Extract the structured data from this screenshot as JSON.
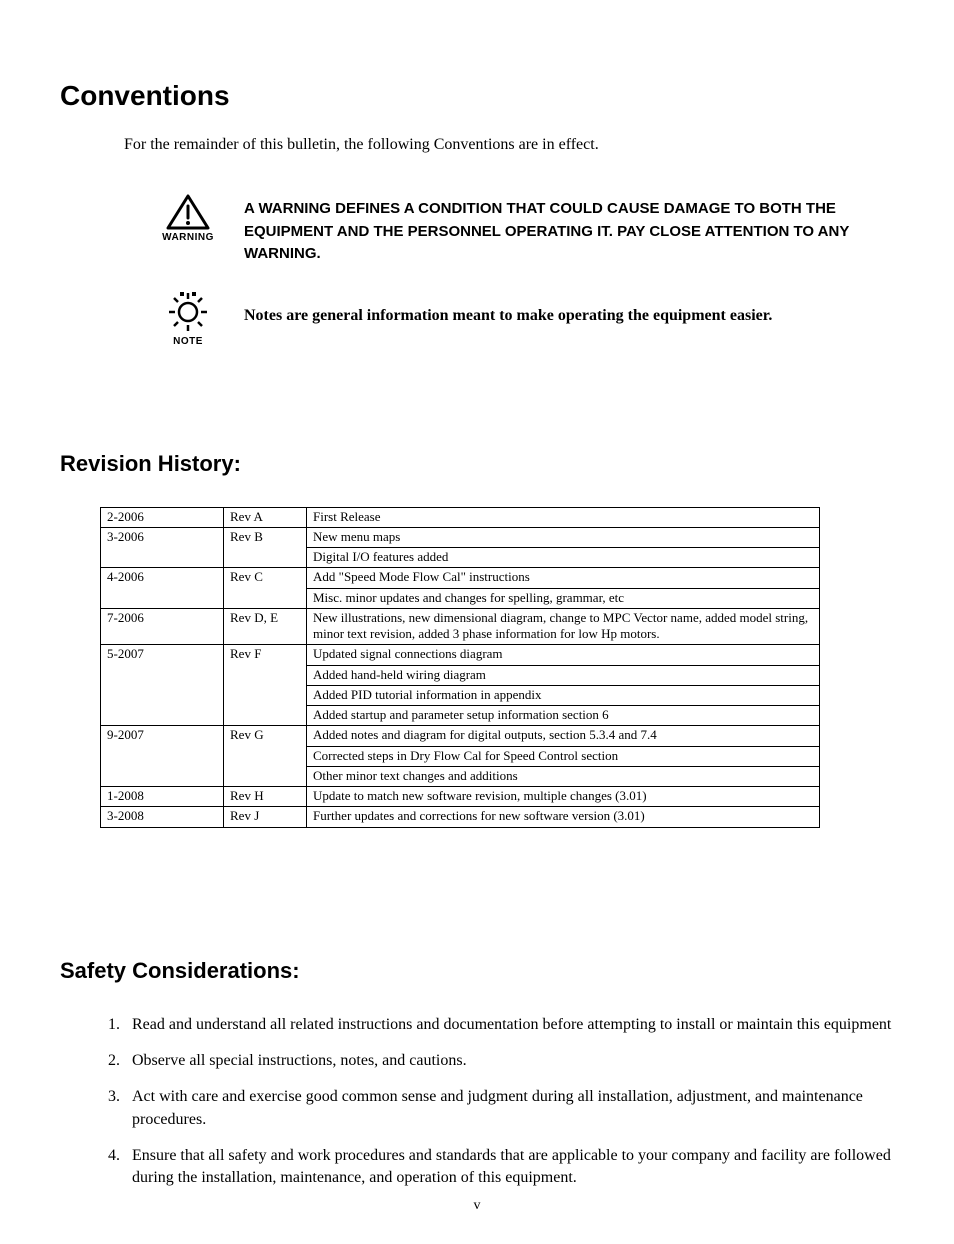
{
  "headings": {
    "conventions": "Conventions",
    "revision_history": "Revision History:",
    "safety": "Safety Considerations:"
  },
  "intro": "For the remainder of this bulletin, the following Conventions are in effect.",
  "warning": {
    "icon_label": "WARNING",
    "text": "A WARNING DEFINES A CONDITION THAT COULD CAUSE DAMAGE TO BOTH THE EQUIPMENT AND THE PERSONNEL OPERATING IT.  PAY CLOSE ATTENTION TO ANY WARNING."
  },
  "note": {
    "icon_label": "NOTE",
    "text": "Notes are general information meant to make operating the equipment easier."
  },
  "revision_table": {
    "col_widths": [
      "110px",
      "70px",
      "auto"
    ],
    "rows": [
      {
        "date": "2-2006",
        "rev": "Rev A",
        "desc": [
          "First Release"
        ]
      },
      {
        "date": "3-2006",
        "rev": "Rev B",
        "desc": [
          "New menu maps",
          "Digital I/O features added"
        ]
      },
      {
        "date": "4-2006",
        "rev": "Rev C",
        "desc": [
          "Add \"Speed Mode Flow Cal\" instructions",
          "Misc. minor updates and changes for spelling, grammar, etc"
        ]
      },
      {
        "date": "7-2006",
        "rev": "Rev D, E",
        "desc": [
          "New illustrations, new dimensional diagram, change to MPC Vector name, added model string, minor text revision, added 3 phase information for low Hp motors."
        ]
      },
      {
        "date": "5-2007",
        "rev": "Rev F",
        "desc": [
          "Updated signal connections diagram",
          "Added hand-held wiring diagram",
          "Added PID tutorial information in appendix",
          "Added startup and parameter setup information section 6"
        ]
      },
      {
        "date": "9-2007",
        "rev": "Rev G",
        "desc": [
          "Added notes and diagram for digital outputs, section 5.3.4 and 7.4",
          "Corrected steps in Dry Flow Cal for Speed Control section",
          "Other minor text changes and additions"
        ]
      },
      {
        "date": "1-2008",
        "rev": "Rev H",
        "desc": [
          "Update to match new software revision, multiple changes (3.01)"
        ]
      },
      {
        "date": "3-2008",
        "rev": "Rev J",
        "desc": [
          "Further updates and corrections for new software version (3.01)"
        ]
      }
    ]
  },
  "safety_items": [
    "Read and understand all related instructions and documentation before attempting to install or maintain this equipment",
    "Observe all special instructions, notes, and cautions.",
    "Act with care and exercise good common sense and judgment during all installation, adjustment, and maintenance procedures.",
    "Ensure that all safety and work procedures and standards that are applicable to your company and facility are followed during the installation, maintenance, and operation of this equipment."
  ],
  "page_number": "v",
  "colors": {
    "text": "#000000",
    "background": "#ffffff",
    "table_border": "#000000"
  },
  "fonts": {
    "body": "Times New Roman",
    "heading": "Arial",
    "heading_size_h1": 28,
    "heading_size_h2": 22,
    "body_size": 16,
    "table_size": 13
  }
}
